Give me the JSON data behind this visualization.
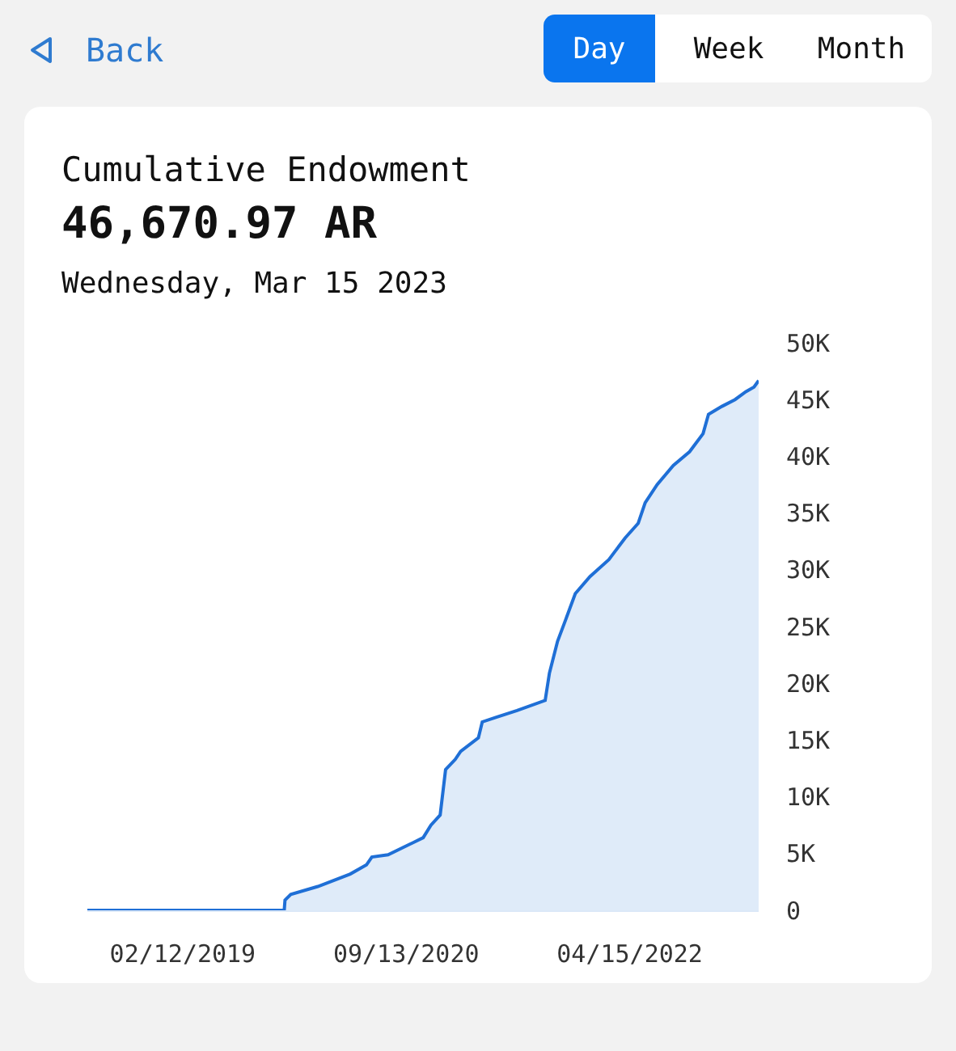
{
  "chart_data": {
    "type": "area",
    "title": "Cumulative Endowment",
    "subtitle": "46,670.97 AR",
    "annotations": [
      "Wednesday, Mar 15 2023",
      "Back",
      "Day",
      "Week",
      "Month"
    ],
    "x": [
      "2018-06-10",
      "2019-11-02",
      "2019-11-04",
      "2019-11-19",
      "2020-01-28",
      "2020-04-21",
      "2020-06-02",
      "2020-06-16",
      "2020-07-28",
      "2020-09-21",
      "2020-10-27",
      "2020-11-16",
      "2020-12-10",
      "2020-12-24",
      "2021-01-18",
      "2021-02-01",
      "2021-03-19",
      "2021-03-29",
      "2021-05-03",
      "2021-06-27",
      "2021-09-08",
      "2021-09-19",
      "2021-10-10",
      "2021-10-31",
      "2021-11-25",
      "2022-01-02",
      "2022-02-20",
      "2022-04-03",
      "2022-05-07",
      "2022-05-25",
      "2022-06-25",
      "2022-08-06",
      "2022-09-17",
      "2022-10-22",
      "2022-11-05",
      "2022-12-10",
      "2023-01-13",
      "2023-02-10",
      "2023-03-03",
      "2023-03-15"
    ],
    "series": [
      {
        "color": "#1f6fd6",
        "values": [
          0,
          0,
          900,
          1400,
          2100,
          3200,
          4000,
          4700,
          4900,
          5800,
          6400,
          7500,
          8400,
          12400,
          13300,
          14000,
          15200,
          16600,
          17000,
          17600,
          18500,
          20900,
          23700,
          25600,
          27900,
          29400,
          30900,
          32800,
          34100,
          35900,
          37500,
          39200,
          40400,
          42000,
          43700,
          44400,
          45000,
          45700,
          46100,
          46670.97
        ]
      }
    ],
    "xlim": [
      "2018-06-10",
      "2023-03-15"
    ],
    "xticks": [
      {
        "value": "2019-02-12",
        "label": "02/12/2019"
      },
      {
        "value": "2020-09-13",
        "label": "09/13/2020"
      },
      {
        "value": "2022-04-15",
        "label": "04/15/2022"
      }
    ],
    "ylim": [
      0,
      50000
    ],
    "yticks": [
      0,
      {
        "value": 5000,
        "label": "5K"
      },
      {
        "value": 10000,
        "label": "10K"
      },
      {
        "value": 15000,
        "label": "15K"
      },
      {
        "value": 20000,
        "label": "20K"
      },
      {
        "value": 25000,
        "label": "25K"
      },
      {
        "value": 30000,
        "label": "30K"
      },
      {
        "value": 35000,
        "label": "35K"
      },
      {
        "value": 40000,
        "label": "40K"
      },
      {
        "value": 45000,
        "label": "45K"
      },
      {
        "value": 50000,
        "label": "50K"
      }
    ]
  }
}
